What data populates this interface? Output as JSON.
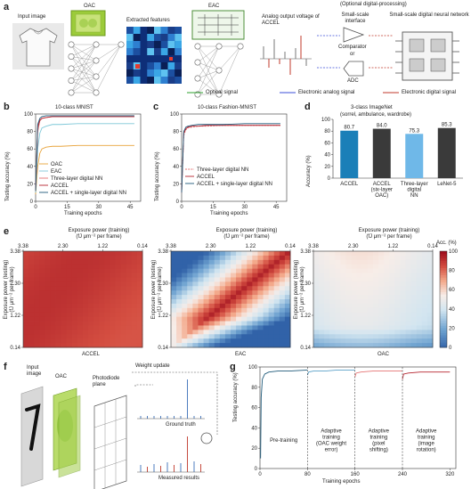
{
  "panel_labels": [
    "a",
    "b",
    "c",
    "d",
    "e",
    "f",
    "g"
  ],
  "a": {
    "input_image": "Input image",
    "oac": "OAC",
    "extracted_features": "Extracted features",
    "eac": "EAC",
    "analog_output": "Analog output voltage of ACCEL",
    "optional": "(Optional digital-processing)",
    "small_interface": "Small-scale interface",
    "small_nn": "Small-scale digital neural network",
    "comparator": "Comparator",
    "or": "or",
    "adc": "ADC",
    "legend_optical": "Optical signal",
    "legend_analog": "Electronic analog signal",
    "legend_digital": "Electronic digital signal",
    "colors": {
      "optical": "#2ca02c",
      "analog": "#3b4fd8",
      "digital": "#c0392b"
    }
  },
  "chart_data": [
    {
      "id": "b",
      "type": "line",
      "title": "10-class MNIST",
      "xlabel": "Training epochs",
      "ylabel": "Testing accuracy (%)",
      "xlim": [
        0,
        50
      ],
      "ylim": [
        0,
        100
      ],
      "xticks": [
        0,
        15,
        30,
        45
      ],
      "yticks": [
        0,
        20,
        40,
        60,
        80,
        100
      ],
      "series": [
        {
          "name": "OAC",
          "color": "#e8a33a",
          "x": [
            0,
            1,
            2,
            3,
            5,
            8,
            12,
            20,
            30,
            40,
            47
          ],
          "y": [
            8,
            40,
            55,
            60,
            62,
            63,
            63,
            64,
            64,
            64,
            64
          ]
        },
        {
          "name": "EAC",
          "color": "#7fc8d8",
          "x": [
            0,
            1,
            2,
            3,
            5,
            8,
            12,
            20,
            30,
            40,
            47
          ],
          "y": [
            10,
            60,
            78,
            84,
            86,
            88,
            88,
            89,
            89,
            89,
            89
          ]
        },
        {
          "name": "Three-layer digital NN",
          "color": "#e57373",
          "x": [
            0,
            1,
            2,
            3,
            5,
            8,
            12,
            20,
            30,
            40,
            47
          ],
          "y": [
            12,
            80,
            92,
            95,
            96,
            97,
            97,
            97,
            97,
            97,
            97
          ]
        },
        {
          "name": "ACCEL",
          "color": "#b5232e",
          "x": [
            0,
            1,
            2,
            3,
            5,
            8,
            12,
            20,
            30,
            40,
            47
          ],
          "y": [
            12,
            85,
            93,
            95,
            96,
            97,
            97,
            97,
            97,
            97,
            97
          ]
        },
        {
          "name": "ACCEL + single-layer digital NN",
          "color": "#1f5a7a",
          "x": [
            0,
            1,
            2,
            3,
            5,
            8,
            12,
            20,
            30,
            40,
            47
          ],
          "y": [
            12,
            88,
            95,
            97,
            98,
            98,
            98,
            98,
            98,
            98,
            98
          ]
        }
      ]
    },
    {
      "id": "c",
      "type": "line",
      "title": "10-class Fashion-MNIST",
      "xlabel": "Training epochs",
      "ylabel": "Testing accuracy (%)",
      "xlim": [
        0,
        50
      ],
      "ylim": [
        0,
        100
      ],
      "xticks": [
        0,
        15,
        30,
        45
      ],
      "yticks": [
        0,
        20,
        40,
        60,
        80,
        100
      ],
      "series": [
        {
          "name": "Three-layer digital NN",
          "color": "#e57373",
          "dash": true,
          "x": [
            0,
            1,
            2,
            3,
            5,
            8,
            12,
            20,
            30,
            40,
            47
          ],
          "y": [
            10,
            75,
            82,
            84,
            85,
            86,
            86,
            87,
            87,
            87,
            87
          ]
        },
        {
          "name": "ACCEL",
          "color": "#b5232e",
          "x": [
            0,
            1,
            2,
            3,
            5,
            8,
            12,
            20,
            30,
            40,
            47
          ],
          "y": [
            10,
            78,
            83,
            85,
            86,
            86,
            87,
            87,
            87,
            87,
            87
          ]
        },
        {
          "name": "ACCEL + single-layer digital NN",
          "color": "#1f5a7a",
          "x": [
            0,
            1,
            2,
            3,
            5,
            8,
            12,
            20,
            30,
            40,
            47
          ],
          "y": [
            10,
            80,
            85,
            86,
            87,
            88,
            88,
            88,
            89,
            89,
            89
          ]
        }
      ]
    },
    {
      "id": "d",
      "type": "bar",
      "title": "3-class ImageNet",
      "subtitle": "(sorrel, ambulance, wardrobe)",
      "ylabel": "Accuracy (%)",
      "ylim": [
        0,
        100
      ],
      "yticks": [
        0,
        20,
        40,
        60,
        80,
        100
      ],
      "categories": [
        "ACCEL",
        "ACCEL (six-layer OAC)",
        "Three-layer digital NN",
        "LeNet-5"
      ],
      "category_lines": [
        [
          "ACCEL"
        ],
        [
          "ACCEL",
          "(six-layer",
          "OAC)"
        ],
        [
          "Three-layer",
          "digital",
          "NN"
        ],
        [
          "LeNet-5"
        ]
      ],
      "values": [
        80.7,
        84.0,
        75.3,
        85.3
      ],
      "value_labels": [
        "80.7",
        "84.0",
        "75.3",
        "85.3"
      ],
      "colors": [
        "#1a7fb8",
        "#3a3a3a",
        "#6fb8e8",
        "#3a3a3a"
      ]
    },
    {
      "id": "e",
      "type": "heatmap",
      "xlabel_line1": "Exposure power (training)",
      "xlabel_line2": "(fJ μm⁻² per frame)",
      "ylabel_line1": "Exposure power (testing)",
      "ylabel_line2": "(fJ μm⁻² per frame)",
      "xticks": [
        "3.38",
        "2.30",
        "1.22",
        "0.14"
      ],
      "yticks": [
        "3.38",
        "2.30",
        "1.22",
        "0.14"
      ],
      "maps": [
        "ACCEL",
        "EAC",
        "OAC"
      ],
      "colorbar": {
        "label": "Acc. (%)",
        "ticks": [
          "100",
          "80",
          "60",
          "40",
          "20",
          "0"
        ]
      }
    },
    {
      "id": "g",
      "type": "line",
      "xlabel": "Training epochs",
      "ylabel": "Testing accuracy (%)",
      "xlim": [
        0,
        330
      ],
      "ylim": [
        0,
        100
      ],
      "xticks": [
        0,
        80,
        160,
        240,
        320
      ],
      "yticks": [
        0,
        20,
        40,
        60,
        80,
        100
      ],
      "stages": [
        {
          "label": [
            "Pre-training"
          ]
        },
        {
          "label": [
            "Adaptive",
            "training",
            "(OAC weight",
            "error)"
          ]
        },
        {
          "label": [
            "Adaptive",
            "training",
            "(pixel",
            "shifting)"
          ]
        },
        {
          "label": [
            "Adaptive",
            "training",
            "(image",
            "rotation)"
          ]
        }
      ],
      "series": [
        {
          "name": "Pre-training",
          "color": "#1f5a7a",
          "x": [
            1,
            2,
            4,
            8,
            15,
            30,
            50,
            80
          ],
          "y": [
            10,
            70,
            88,
            93,
            95,
            96,
            96,
            97
          ]
        },
        {
          "name": "Adaptive (OAC weight error)",
          "color": "#5aa0c8",
          "x": [
            80,
            82,
            90,
            110,
            130,
            160
          ],
          "y": [
            92,
            95,
            96,
            96,
            97,
            97
          ]
        },
        {
          "name": "Adaptive (pixel shifting)",
          "color": "#e57373",
          "x": [
            160,
            162,
            170,
            190,
            210,
            240
          ],
          "y": [
            90,
            94,
            95,
            96,
            96,
            96
          ]
        },
        {
          "name": "Adaptive (image rotation)",
          "color": "#b5232e",
          "x": [
            240,
            242,
            250,
            270,
            290,
            320
          ],
          "y": [
            88,
            93,
            94,
            95,
            95,
            95
          ]
        }
      ]
    }
  ],
  "f": {
    "input_image": "Input image",
    "oac": "OAC",
    "photodiode_plane": "Photodiode plane",
    "weight_update": "Weight update",
    "ground_truth": "Ground truth",
    "measured_results": "Measured results",
    "minus": "−"
  }
}
